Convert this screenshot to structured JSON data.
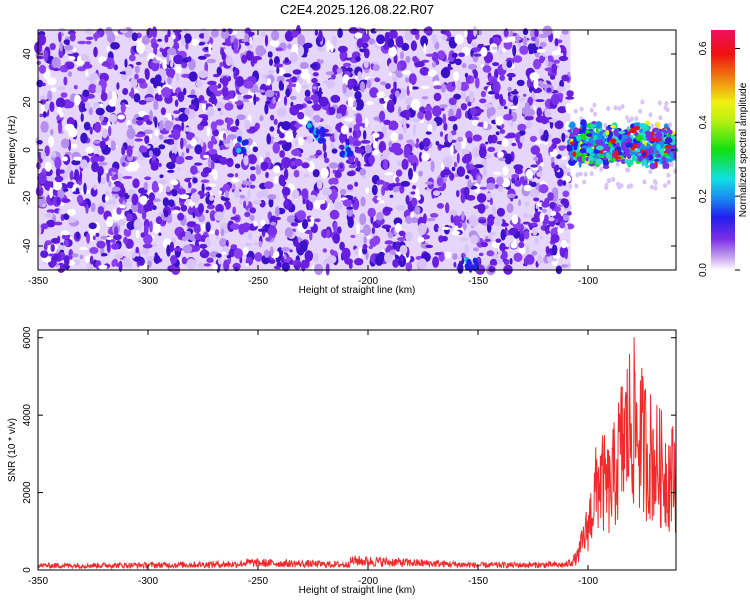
{
  "title": "C2E4.2025.126.08.22.R07",
  "chart_data": [
    {
      "type": "heatmap",
      "xlabel": "Height of straight line (km)",
      "ylabel": "Frequency (Hz)",
      "xlim": [
        -350,
        -60
      ],
      "ylim": [
        -50,
        50
      ],
      "xticks": [
        -350,
        -300,
        -250,
        -200,
        -150,
        -100
      ],
      "yticks": [
        -40,
        -20,
        0,
        20,
        40
      ],
      "colorbar": {
        "label": "Normalized spectral amplitude",
        "range": [
          0,
          0.65
        ],
        "ticks": [
          0.0,
          0.2,
          0.4,
          0.6
        ],
        "colormap": "white-purple-blue-cyan-green-yellow-red-magenta"
      },
      "data_extent_low_snr": [
        -350,
        -108
      ],
      "signal_band": {
        "x": [
          -108,
          -60
        ],
        "freq_center": 2,
        "freq_halfwidth": 8
      },
      "background_color": "#7a2fe8",
      "signal_color": "#2fd8c8"
    },
    {
      "type": "line",
      "xlabel": "Height of straight line (km)",
      "ylabel": "SNR (10 * v/v)",
      "xlim": [
        -350,
        -60
      ],
      "ylim": [
        0,
        6200
      ],
      "xticks": [
        -350,
        -300,
        -250,
        -200,
        -150,
        -100
      ],
      "yticks": [
        0,
        2000,
        4000,
        6000
      ],
      "series": [
        {
          "color": "#ee2a2a",
          "envelope": [
            {
              "x": -350,
              "y": 180
            },
            {
              "x": -300,
              "y": 200
            },
            {
              "x": -260,
              "y": 240
            },
            {
              "x": -255,
              "y": 300
            },
            {
              "x": -210,
              "y": 220
            },
            {
              "x": -207,
              "y": 380
            },
            {
              "x": -150,
              "y": 200
            },
            {
              "x": -110,
              "y": 210
            },
            {
              "x": -105,
              "y": 500
            },
            {
              "x": -100,
              "y": 1800
            },
            {
              "x": -95,
              "y": 3800
            },
            {
              "x": -90,
              "y": 3200
            },
            {
              "x": -85,
              "y": 5000
            },
            {
              "x": -80,
              "y": 6200
            },
            {
              "x": -75,
              "y": 5200
            },
            {
              "x": -70,
              "y": 4500
            },
            {
              "x": -65,
              "y": 4000
            },
            {
              "x": -60,
              "y": 3800
            }
          ]
        }
      ]
    }
  ]
}
